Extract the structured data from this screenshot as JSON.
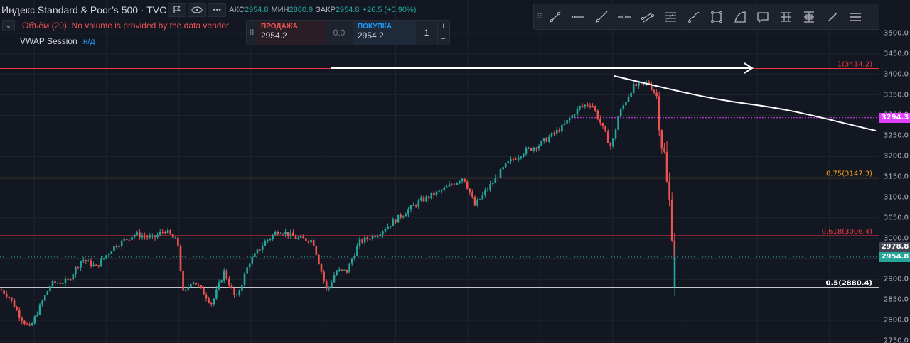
{
  "header": {
    "symbol_title": "Индекс Standard & Poor’s 500 · TVC",
    "ohlc": [
      {
        "key": "АКС",
        "value": "2954.8"
      },
      {
        "key": "МИН",
        "value": "2880.9"
      },
      {
        "key": "ЗАКР",
        "value": "2954.8"
      },
      {
        "key": "",
        "value": "+26.5 (+0.90%)"
      }
    ],
    "volume_warning": "Объём (20): No volume is provided by the data vendor.",
    "vwap_label": "VWAP Session",
    "vwap_value": "н/д"
  },
  "trade_panel": {
    "sell_label": "ПРОДАЖА",
    "sell_price": "2954.2",
    "spread": "0.0",
    "buy_label": "ПОКУПКА",
    "buy_price": "2954.2",
    "quantity": "1",
    "plus": "+",
    "minus": "−"
  },
  "toolbar": {
    "tools": [
      "trend-line-icon",
      "horizontal-ray-icon",
      "ray-icon",
      "horizontal-line-icon",
      "parallel-channel-icon",
      "fib-retracement-icon",
      "brush-icon",
      "rectangle-icon",
      "arc-icon",
      "callout-icon",
      "long-position-icon",
      "date-price-range-icon",
      "measure-icon",
      "more-icon"
    ]
  },
  "price_scale": {
    "ticks": [
      "3500.0",
      "3450.0",
      "3400.0",
      "3350.0",
      "3300.0",
      "3250.0",
      "3200.0",
      "3150.0",
      "3100.0",
      "3050.0",
      "3000.0",
      "2950.0",
      "2900.0",
      "2850.0",
      "2800.0",
      "2750.0"
    ],
    "badges": [
      {
        "text": "3294.3",
        "price": 3294.3,
        "color": "#e040fb"
      },
      {
        "text": "2978.8",
        "price": 2978.8,
        "color": "#434651"
      },
      {
        "text": "2954.8",
        "price": 2954.8,
        "color": "#26a69a"
      }
    ]
  },
  "chart_data": {
    "type": "candlestick",
    "ylim": [
      2750,
      3500
    ],
    "last_price": 2954.8,
    "fib_levels": [
      {
        "label": "1(3414.2)",
        "price": 3414.2,
        "color": "#f23645"
      },
      {
        "label": "0.75(3147.3)",
        "price": 3147.3,
        "color": "#f7a21b"
      },
      {
        "label": "0.618(3006.4)",
        "price": 3006.4,
        "color": "#f23645"
      },
      {
        "label": "0.5(2880.4)",
        "price": 2880.4,
        "color": "#ffffff"
      }
    ],
    "magenta_level": 3294.3,
    "colors": {
      "up": "#26a69a",
      "down": "#ef5350",
      "grid": "#1f232e"
    },
    "path_keypoints": [
      [
        0,
        2875
      ],
      [
        12,
        2860
      ],
      [
        28,
        2810
      ],
      [
        42,
        2780
      ],
      [
        55,
        2830
      ],
      [
        72,
        2890
      ],
      [
        95,
        2895
      ],
      [
        115,
        2950
      ],
      [
        135,
        2930
      ],
      [
        160,
        2980
      ],
      [
        190,
        3010
      ],
      [
        215,
        3000
      ],
      [
        232,
        3020
      ],
      [
        250,
        2990
      ],
      [
        258,
        2860
      ],
      [
        270,
        2900
      ],
      [
        285,
        2870
      ],
      [
        298,
        2840
      ],
      [
        315,
        2920
      ],
      [
        332,
        2850
      ],
      [
        350,
        2940
      ],
      [
        372,
        2990
      ],
      [
        392,
        3020
      ],
      [
        418,
        3000
      ],
      [
        440,
        2995
      ],
      [
        460,
        2870
      ],
      [
        472,
        2920
      ],
      [
        488,
        2920
      ],
      [
        505,
        2990
      ],
      [
        530,
        3010
      ],
      [
        560,
        3050
      ],
      [
        590,
        3090
      ],
      [
        625,
        3120
      ],
      [
        652,
        3150
      ],
      [
        668,
        3080
      ],
      [
        690,
        3130
      ],
      [
        712,
        3180
      ],
      [
        735,
        3210
      ],
      [
        760,
        3230
      ],
      [
        790,
        3270
      ],
      [
        815,
        3320
      ],
      [
        832,
        3330
      ],
      [
        845,
        3280
      ],
      [
        860,
        3220
      ],
      [
        870,
        3300
      ],
      [
        890,
        3370
      ],
      [
        912,
        3380
      ],
      [
        926,
        3340
      ],
      [
        928,
        3250
      ],
      [
        935,
        3200
      ],
      [
        939,
        3110
      ],
      [
        944,
        3070
      ],
      [
        946,
        2980
      ],
      [
        948,
        2960
      ],
      [
        951,
        2955
      ]
    ]
  }
}
